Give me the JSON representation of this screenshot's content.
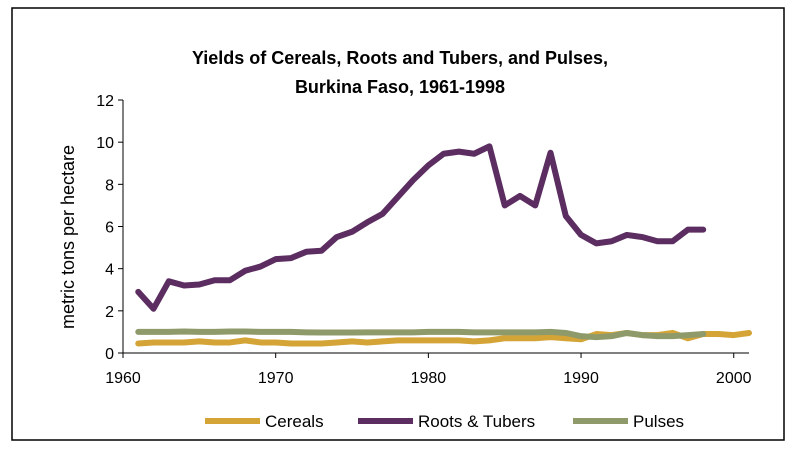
{
  "chart_data": {
    "type": "line",
    "title": [
      "Yields of Cereals, Roots and Tubers, and Pulses,",
      "Burkina Faso, 1961-1998"
    ],
    "y_label": "metric tons per hectare",
    "x": [
      1961,
      1962,
      1963,
      1964,
      1965,
      1966,
      1967,
      1968,
      1969,
      1970,
      1971,
      1972,
      1973,
      1974,
      1975,
      1976,
      1977,
      1978,
      1979,
      1980,
      1981,
      1982,
      1983,
      1984,
      1985,
      1986,
      1987,
      1988,
      1989,
      1990,
      1991,
      1992,
      1993,
      1994,
      1995,
      1996,
      1997,
      1998,
      1999,
      2000,
      2001
    ],
    "series": [
      {
        "name": "Cereals",
        "color": "#d4a437",
        "values": [
          0.45,
          0.5,
          0.5,
          0.5,
          0.55,
          0.5,
          0.5,
          0.6,
          0.5,
          0.5,
          0.45,
          0.45,
          0.45,
          0.5,
          0.55,
          0.5,
          0.55,
          0.6,
          0.6,
          0.6,
          0.6,
          0.6,
          0.55,
          0.6,
          0.7,
          0.7,
          0.7,
          0.75,
          0.7,
          0.65,
          0.9,
          0.85,
          0.95,
          0.85,
          0.85,
          0.95,
          0.7,
          0.9,
          0.9,
          0.85,
          0.95
        ]
      },
      {
        "name": "Roots & Tubers",
        "color": "#5c2d61",
        "values": [
          2.9,
          2.1,
          3.4,
          3.2,
          3.25,
          3.45,
          3.45,
          3.9,
          4.1,
          4.45,
          4.5,
          4.8,
          4.85,
          5.5,
          5.75,
          6.2,
          6.6,
          7.4,
          8.2,
          8.9,
          9.45,
          9.55,
          9.45,
          9.8,
          7.0,
          7.45,
          7.0,
          9.5,
          6.5,
          5.6,
          5.2,
          5.3,
          5.6,
          5.5,
          5.3,
          5.3,
          5.85,
          5.85,
          null,
          null,
          null
        ]
      },
      {
        "name": "Pulses",
        "color": "#8f9a6b",
        "values": [
          1.0,
          1.0,
          1.0,
          1.02,
          1.0,
          1.0,
          1.02,
          1.02,
          1.0,
          1.0,
          1.0,
          0.98,
          0.97,
          0.97,
          0.97,
          0.98,
          0.98,
          0.98,
          0.98,
          1.0,
          1.0,
          1.0,
          0.98,
          0.98,
          0.98,
          0.98,
          0.98,
          1.0,
          0.95,
          0.8,
          0.75,
          0.8,
          0.95,
          0.85,
          0.8,
          0.8,
          0.85,
          0.9,
          null,
          null,
          null
        ]
      }
    ],
    "xlim": [
      1960,
      2001
    ],
    "xticks": [
      1960,
      1970,
      1980,
      1990,
      2000
    ],
    "ylim": [
      0,
      12
    ],
    "yticks": [
      0,
      2,
      4,
      6,
      8,
      10,
      12
    ],
    "grid": false,
    "legend": "bottom"
  }
}
